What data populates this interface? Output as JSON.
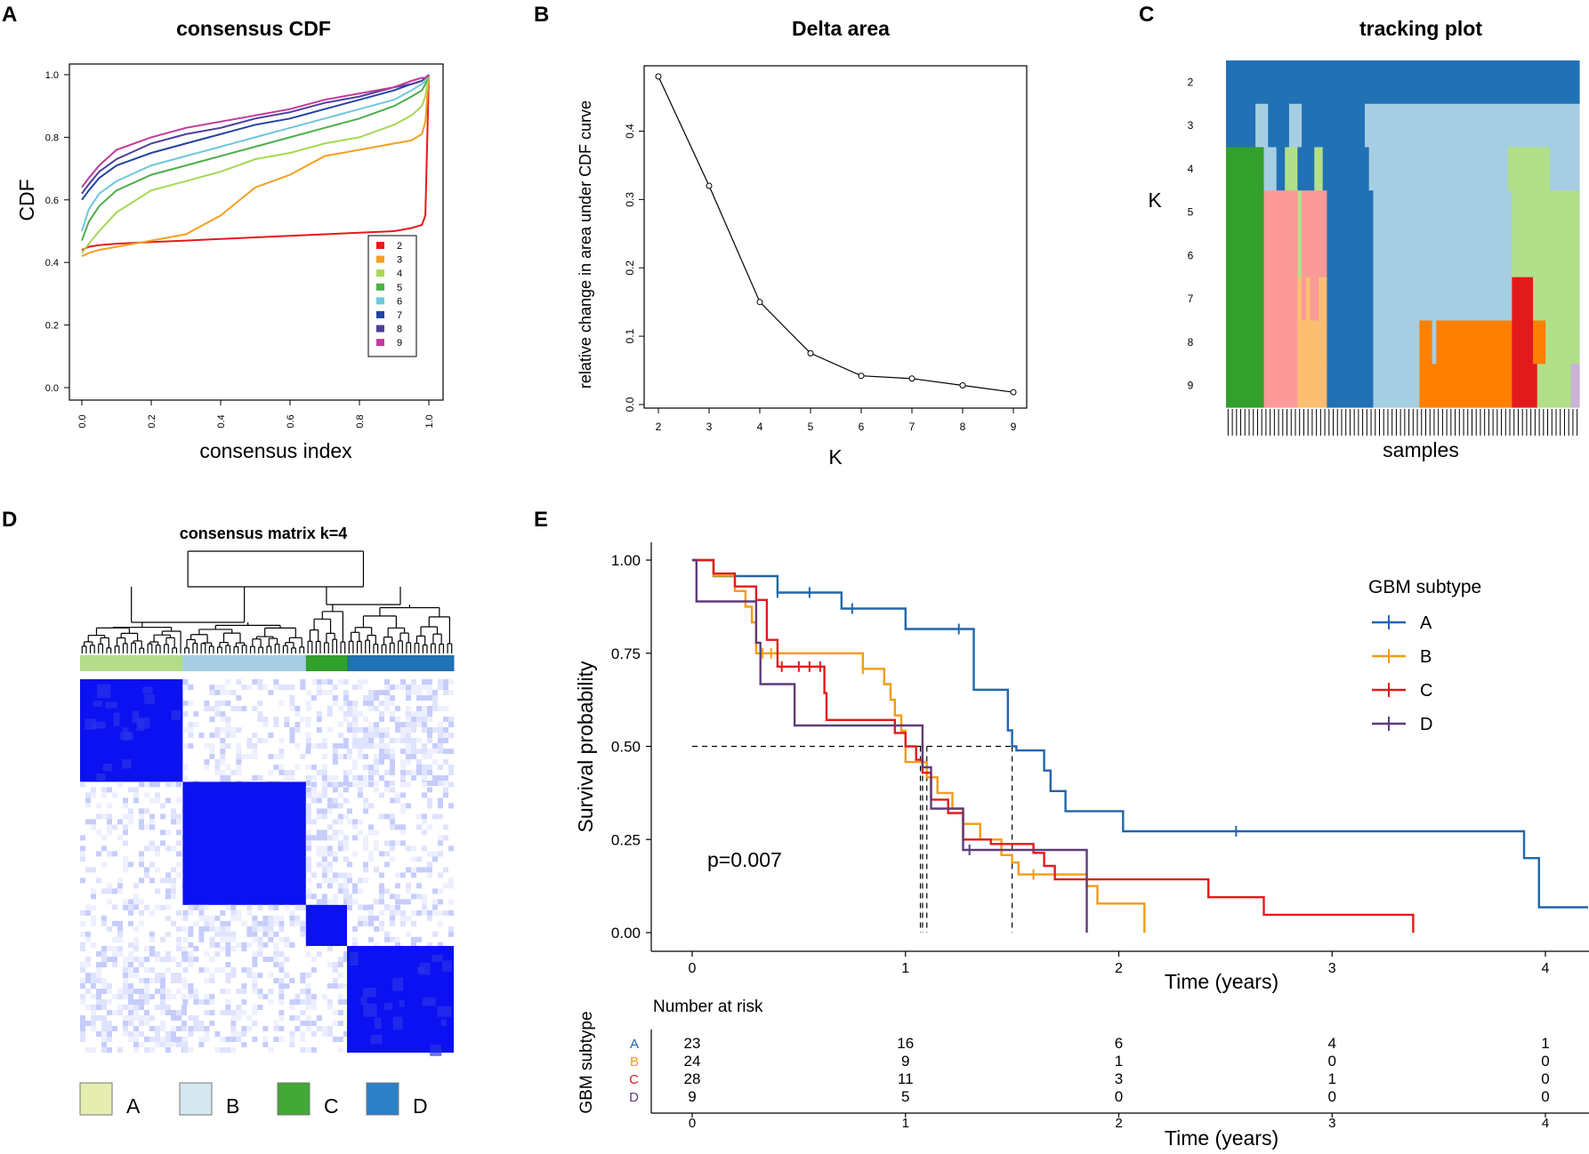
{
  "panel_labels": {
    "a": "A",
    "b": "B",
    "c": "C",
    "d": "D",
    "e": "E"
  },
  "chart_data": [
    {
      "id": "A",
      "type": "line",
      "title": "consensus CDF",
      "xlabel": "consensus index",
      "ylabel": "CDF",
      "xlim": [
        0,
        1
      ],
      "ylim": [
        0,
        1
      ],
      "xticks": [
        "0.0",
        "0.2",
        "0.4",
        "0.6",
        "0.8",
        "1.0"
      ],
      "yticks": [
        "0.0",
        "0.2",
        "0.4",
        "0.6",
        "0.8",
        "1.0"
      ],
      "legend_position": "bottom-right",
      "x": [
        0,
        0.02,
        0.05,
        0.1,
        0.2,
        0.3,
        0.4,
        0.5,
        0.6,
        0.7,
        0.8,
        0.9,
        0.95,
        0.98,
        0.99,
        1.0
      ],
      "series": [
        {
          "name": "2",
          "color": "#e41a1c",
          "values": [
            0.44,
            0.45,
            0.455,
            0.46,
            0.465,
            0.47,
            0.475,
            0.48,
            0.485,
            0.49,
            0.495,
            0.5,
            0.51,
            0.52,
            0.55,
            1.0
          ]
        },
        {
          "name": "3",
          "color": "#f4a020",
          "values": [
            0.42,
            0.43,
            0.44,
            0.45,
            0.47,
            0.49,
            0.55,
            0.64,
            0.68,
            0.74,
            0.76,
            0.78,
            0.79,
            0.81,
            0.85,
            1.0
          ]
        },
        {
          "name": "4",
          "color": "#a6d854",
          "values": [
            0.43,
            0.46,
            0.5,
            0.56,
            0.63,
            0.66,
            0.69,
            0.73,
            0.75,
            0.78,
            0.8,
            0.84,
            0.87,
            0.9,
            0.93,
            1.0
          ]
        },
        {
          "name": "5",
          "color": "#4daf4a",
          "values": [
            0.47,
            0.53,
            0.58,
            0.63,
            0.68,
            0.71,
            0.74,
            0.77,
            0.8,
            0.83,
            0.86,
            0.9,
            0.93,
            0.95,
            0.97,
            1.0
          ]
        },
        {
          "name": "6",
          "color": "#6fc7d9",
          "values": [
            0.5,
            0.57,
            0.62,
            0.66,
            0.71,
            0.74,
            0.77,
            0.8,
            0.83,
            0.86,
            0.89,
            0.92,
            0.95,
            0.97,
            0.98,
            1.0
          ]
        },
        {
          "name": "7",
          "color": "#2244a0",
          "values": [
            0.6,
            0.63,
            0.67,
            0.71,
            0.75,
            0.78,
            0.81,
            0.84,
            0.86,
            0.89,
            0.92,
            0.95,
            0.97,
            0.98,
            0.99,
            1.0
          ]
        },
        {
          "name": "8",
          "color": "#4b3f9a",
          "values": [
            0.62,
            0.65,
            0.69,
            0.73,
            0.78,
            0.81,
            0.83,
            0.86,
            0.88,
            0.91,
            0.93,
            0.96,
            0.97,
            0.98,
            0.99,
            1.0
          ]
        },
        {
          "name": "9",
          "color": "#c2399b",
          "values": [
            0.64,
            0.67,
            0.71,
            0.76,
            0.8,
            0.83,
            0.85,
            0.87,
            0.89,
            0.92,
            0.94,
            0.96,
            0.98,
            0.99,
            0.99,
            1.0
          ]
        }
      ]
    },
    {
      "id": "B",
      "type": "line",
      "title": "Delta area",
      "xlabel": "K",
      "ylabel": "relative change in area under CDF curve",
      "xlim": [
        2,
        9
      ],
      "ylim": [
        0,
        0.48
      ],
      "xticks": [
        "2",
        "3",
        "4",
        "5",
        "6",
        "7",
        "8",
        "9"
      ],
      "yticks": [
        "0.0",
        "0.1",
        "0.2",
        "0.3",
        "0.4"
      ],
      "x": [
        2,
        3,
        4,
        5,
        6,
        7,
        8,
        9
      ],
      "values": [
        0.48,
        0.32,
        0.15,
        0.075,
        0.042,
        0.038,
        0.028,
        0.018
      ]
    },
    {
      "id": "C",
      "type": "heatmap",
      "title": "tracking plot",
      "xlabel": "samples",
      "ylabel": "K",
      "rows": [
        "2",
        "3",
        "4",
        "5",
        "6",
        "7",
        "8",
        "9"
      ],
      "n_samples": 84,
      "colors": {
        "a": "#2171b5",
        "b": "#a6cee3",
        "c": "#33a02c",
        "d": "#fb9a99",
        "e": "#b2df8a",
        "f": "#e31a1c",
        "g": "#fdbf6f",
        "h": "#ff7f00",
        "i": "#cab2d6"
      },
      "assignments": [
        "aaaaaaaaaaaaaaaaaaaaaaaaaaaaaaaaaaaaaaaaaaaaaaaaaaaaaaaaaaaaaaaaaaaaaaaaaaaaaaaaaaaa",
        "aaaaaaabbbaaaaabbbaaaaaaaaaaaaaaabbbbbbbbbbbbbbbbbbbbbbbbbbbbbbbbbbbbbbbbbbbbbbbbbbb",
        "cccccccccbbbaaeeeaaaaeeaaaaaaaaaaabbbbbbbbbbbbbbbbbbbbbbbbbbbbbbbbbeeeeeeeeeebbbbbbbb",
        "cccccccccddddddddeddddddaaaaaaaaaaabbbbbbbbbbbbbbbbbbbbbbbbbbbbbbbbbeeeeeeeeeeeeeeeeee",
        "cccccccccddddddddeddddddaaaaaaaaaaabbbbbbbbbbbbbbbbbbbbbbbbbbbbbbbbbeeeeeeeeeeeeeeeeee",
        "cccccccccddddddddgdgddggaaaaaaaaaaabbbbbbbbbbbbbbbbbbbbbbbbbbbbbbbbbfffffeeeeeeeeeeeee",
        "cccccccccddddddddgggggggaaaaaaaaaaabbbbbbbbbbbhhhbhhhhhhhhhhhhhhhhhhfffffhhheeeeeeeeee",
        "cccccccccddddddddgggggggaaaaaaaaaaabbbbbbbbbbbhhhhhhhhhhhhhhhhhhhhhhffffffeeeeeeeeiiii"
      ]
    },
    {
      "id": "D",
      "type": "heatmap",
      "title": "consensus matrix k=4",
      "groups": [
        {
          "name": "A",
          "legend_color": "#e5eeb0",
          "bar_color": "#b3dd8a"
        },
        {
          "name": "B",
          "legend_color": "#d5e8f0",
          "bar_color": "#a6cee3"
        },
        {
          "name": "C",
          "legend_color": "#42a836",
          "bar_color": "#33a02c"
        },
        {
          "name": "D",
          "legend_color": "#2b80c7",
          "bar_color": "#2171b5"
        }
      ],
      "group_order": [
        "A",
        "B",
        "C",
        "D"
      ],
      "group_sizes": [
        25,
        30,
        10,
        26
      ]
    },
    {
      "id": "E",
      "type": "line",
      "title": "",
      "xlabel": "Time (years)",
      "ylabel": "Survival  probability",
      "xlim": [
        0,
        4.2
      ],
      "ylim": [
        0,
        1
      ],
      "xticks": [
        "0",
        "1",
        "2",
        "3",
        "4"
      ],
      "yticks": [
        "0.00",
        "0.25",
        "0.50",
        "0.75",
        "1.00"
      ],
      "legend_title": "GBM subtype",
      "legend_position": "right",
      "pvalue": "p=0.007",
      "median_line": 0.5,
      "series": [
        {
          "name": "A",
          "color": "#2166ac",
          "median": 1.5,
          "steps": [
            [
              0,
              1.0
            ],
            [
              0.1,
              0.957
            ],
            [
              0.4,
              0.913
            ],
            [
              0.7,
              0.87
            ],
            [
              1.0,
              0.815
            ],
            [
              1.32,
              0.652
            ],
            [
              1.48,
              0.543
            ],
            [
              1.5,
              0.5
            ],
            [
              1.52,
              0.489
            ],
            [
              1.65,
              0.435
            ],
            [
              1.68,
              0.38
            ],
            [
              1.75,
              0.326
            ],
            [
              2.02,
              0.272
            ],
            [
              3.9,
              0.2
            ],
            [
              3.97,
              0.068
            ],
            [
              4.2,
              0.068
            ]
          ],
          "censors": [
            [
              0.4,
              0.913
            ],
            [
              0.55,
              0.913
            ],
            [
              0.75,
              0.87
            ],
            [
              1.25,
              0.815
            ],
            [
              2.55,
              0.272
            ]
          ]
        },
        {
          "name": "B",
          "color": "#f39c12",
          "median": 1.08,
          "steps": [
            [
              0,
              1.0
            ],
            [
              0.1,
              0.958
            ],
            [
              0.2,
              0.917
            ],
            [
              0.25,
              0.875
            ],
            [
              0.28,
              0.833
            ],
            [
              0.3,
              0.792
            ],
            [
              0.3,
              0.75
            ],
            [
              0.78,
              0.75
            ],
            [
              0.8,
              0.708
            ],
            [
              0.9,
              0.667
            ],
            [
              0.93,
              0.625
            ],
            [
              0.95,
              0.583
            ],
            [
              0.98,
              0.542
            ],
            [
              1.0,
              0.458
            ],
            [
              1.1,
              0.417
            ],
            [
              1.15,
              0.375
            ],
            [
              1.22,
              0.333
            ],
            [
              1.27,
              0.292
            ],
            [
              1.35,
              0.25
            ],
            [
              1.45,
              0.208
            ],
            [
              1.5,
              0.188
            ],
            [
              1.53,
              0.156
            ],
            [
              1.85,
              0.125
            ],
            [
              1.9,
              0.078
            ],
            [
              2.12,
              0.078
            ],
            [
              2.12,
              0.0
            ]
          ],
          "censors": [
            [
              0.33,
              0.75
            ],
            [
              0.37,
              0.75
            ],
            [
              0.8,
              0.708
            ],
            [
              1.6,
              0.156
            ]
          ]
        },
        {
          "name": "C",
          "color": "#e31a1c",
          "median": 1.1,
          "steps": [
            [
              0,
              1.0
            ],
            [
              0.1,
              0.964
            ],
            [
              0.2,
              0.929
            ],
            [
              0.3,
              0.893
            ],
            [
              0.35,
              0.786
            ],
            [
              0.4,
              0.714
            ],
            [
              0.62,
              0.643
            ],
            [
              0.63,
              0.571
            ],
            [
              0.95,
              0.536
            ],
            [
              1.0,
              0.5
            ],
            [
              1.05,
              0.464
            ],
            [
              1.08,
              0.429
            ],
            [
              1.12,
              0.357
            ],
            [
              1.2,
              0.321
            ],
            [
              1.27,
              0.25
            ],
            [
              1.4,
              0.238
            ],
            [
              1.6,
              0.214
            ],
            [
              1.65,
              0.179
            ],
            [
              1.7,
              0.143
            ],
            [
              2.4,
              0.143
            ],
            [
              2.42,
              0.095
            ],
            [
              2.68,
              0.095
            ],
            [
              2.68,
              0.048
            ],
            [
              3.38,
              0.048
            ],
            [
              3.38,
              0.0
            ]
          ],
          "censors": [
            [
              0.42,
              0.714
            ],
            [
              0.5,
              0.714
            ],
            [
              0.55,
              0.714
            ],
            [
              0.6,
              0.714
            ]
          ]
        },
        {
          "name": "D",
          "color": "#5e3c7a",
          "median": 1.07,
          "steps": [
            [
              0,
              1.0
            ],
            [
              0.02,
              0.889
            ],
            [
              0.25,
              0.889
            ],
            [
              0.3,
              0.778
            ],
            [
              0.32,
              0.667
            ],
            [
              0.45,
              0.667
            ],
            [
              0.48,
              0.556
            ],
            [
              1.05,
              0.556
            ],
            [
              1.08,
              0.444
            ],
            [
              1.12,
              0.333
            ],
            [
              1.27,
              0.222
            ],
            [
              1.85,
              0.222
            ],
            [
              1.85,
              0.0
            ]
          ],
          "censors": [
            [
              1.3,
              0.222
            ]
          ]
        }
      ],
      "risk_table": {
        "title": "Number at risk",
        "ylabel": "GBM subtype",
        "xlabel": "Time (years)",
        "xticks": [
          "0",
          "1",
          "2",
          "3",
          "4"
        ],
        "rows": [
          {
            "name": "A",
            "counts": [
              "23",
              "16",
              "6",
              "4",
              "1"
            ]
          },
          {
            "name": "B",
            "counts": [
              "24",
              "9",
              "1",
              "0",
              "0"
            ]
          },
          {
            "name": "C",
            "counts": [
              "28",
              "11",
              "3",
              "1",
              "0"
            ]
          },
          {
            "name": "D",
            "counts": [
              "9",
              "5",
              "0",
              "0",
              "0"
            ]
          }
        ]
      }
    }
  ]
}
